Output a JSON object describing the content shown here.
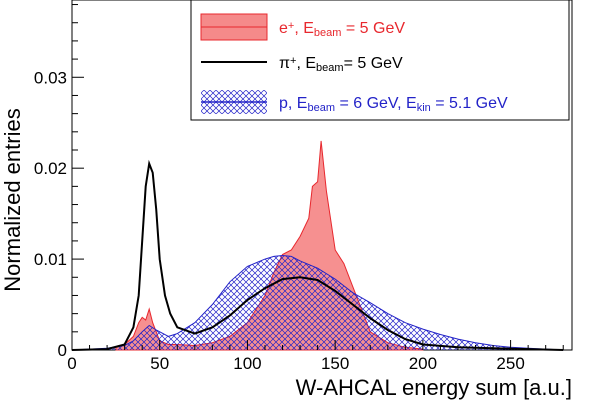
{
  "chart_data": {
    "type": "line",
    "xlabel": "W-AHCAL energy sum [a.u.]",
    "ylabel": "Normalized entries",
    "xlim": [
      0,
      285
    ],
    "ylim": [
      0,
      0.0385
    ],
    "x_ticks": [
      0,
      50,
      100,
      150,
      200,
      250
    ],
    "y_ticks": [
      0,
      0.01,
      0.02,
      0.03
    ],
    "x_tick_labels": [
      "0",
      "50",
      "100",
      "150",
      "200",
      "250"
    ],
    "y_tick_labels": [
      "0",
      "0.01",
      "0.02",
      "0.03"
    ],
    "legend_position": "top-right",
    "series": [
      {
        "name": "e+, Ebeam = 5 GeV",
        "legend": {
          "main": "e",
          "sup": "+",
          "mid": ", E",
          "sub": "beam",
          "tail": " = 5 GeV",
          "sub2": "",
          "tail2": ""
        },
        "style": "filled-histogram",
        "color": "#e8282e",
        "fill": "#f58a8a",
        "x": [
          25,
          30,
          35,
          38,
          40,
          42,
          44,
          46,
          48,
          50,
          55,
          60,
          70,
          80,
          90,
          100,
          110,
          115,
          120,
          125,
          130,
          135,
          137,
          140,
          142,
          145,
          150,
          155,
          160,
          165,
          170,
          180,
          190,
          200
        ],
        "y": [
          0.0003,
          0.0006,
          0.0015,
          0.003,
          0.0036,
          0.0033,
          0.0045,
          0.003,
          0.002,
          0.001,
          0.0006,
          0.0006,
          0.0005,
          0.0008,
          0.0015,
          0.003,
          0.006,
          0.0085,
          0.0105,
          0.011,
          0.0125,
          0.0145,
          0.018,
          0.0185,
          0.023,
          0.0175,
          0.011,
          0.0095,
          0.007,
          0.0045,
          0.002,
          0.0008,
          0.0003,
          0.0001
        ]
      },
      {
        "name": "π+, Ebeam= 5 GeV",
        "legend": {
          "main": "π",
          "sup": "+",
          "mid": ", E",
          "sub": "beam",
          "tail": "= 5 GeV",
          "sub2": "",
          "tail2": ""
        },
        "style": "line",
        "color": "#000000",
        "x": [
          0,
          20,
          30,
          35,
          38,
          40,
          42,
          44,
          46,
          48,
          50,
          53,
          56,
          60,
          70,
          80,
          90,
          100,
          110,
          120,
          130,
          140,
          150,
          160,
          170,
          180,
          190,
          200,
          220,
          240,
          260,
          280
        ],
        "y": [
          0,
          0.0001,
          0.0006,
          0.0025,
          0.006,
          0.012,
          0.018,
          0.0205,
          0.0195,
          0.0155,
          0.01,
          0.006,
          0.004,
          0.0025,
          0.0018,
          0.0025,
          0.0038,
          0.0055,
          0.0068,
          0.0078,
          0.008,
          0.0077,
          0.0065,
          0.005,
          0.0035,
          0.0022,
          0.0012,
          0.0006,
          0.0003,
          0.0002,
          0.0001,
          0
        ]
      },
      {
        "name": "p, Ebeam = 6 GeV, Ekin = 5.1 GeV",
        "legend": {
          "main": "p",
          "sup": "",
          "mid": ", E",
          "sub": "beam",
          "tail": " = 6 GeV, E",
          "sub2": "kin",
          "tail2": " = 5.1 GeV"
        },
        "style": "hatched-histogram",
        "color": "#2323c8",
        "x": [
          0,
          20,
          30,
          35,
          40,
          44,
          48,
          55,
          60,
          70,
          80,
          90,
          100,
          110,
          115,
          120,
          125,
          130,
          140,
          150,
          160,
          170,
          180,
          190,
          200,
          210,
          220,
          230,
          240,
          250,
          260,
          270,
          280
        ],
        "y": [
          0,
          0.0002,
          0.0005,
          0.001,
          0.002,
          0.0027,
          0.0022,
          0.0015,
          0.0018,
          0.003,
          0.005,
          0.0075,
          0.0092,
          0.01,
          0.0103,
          0.0104,
          0.0103,
          0.0098,
          0.009,
          0.0078,
          0.0063,
          0.0052,
          0.004,
          0.003,
          0.0023,
          0.0017,
          0.0012,
          0.0008,
          0.0005,
          0.0003,
          0.0002,
          0.0001,
          0
        ]
      }
    ]
  }
}
